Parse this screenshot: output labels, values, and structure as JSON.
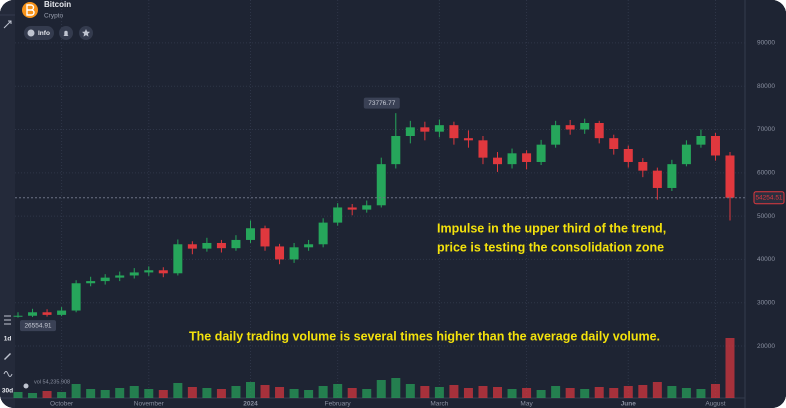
{
  "header": {
    "title": "Bitcoin",
    "subtitle": "Crypto",
    "info_button": "Info"
  },
  "toolbar": {
    "interval": "1d",
    "range": "30d",
    "volume_readout": "vol 54,235.908"
  },
  "annotations": [
    "Impulse in the upper third of the trend,",
    "price is testing the consolidation zone",
    "The daily trading volume is several times higher than the average daily volume."
  ],
  "chart_data": {
    "type": "candlestick",
    "categories": [
      null,
      null,
      null,
      "October",
      null,
      null,
      null,
      null,
      null,
      "November",
      null,
      null,
      null,
      null,
      null,
      null,
      "2024",
      null,
      null,
      null,
      null,
      null,
      "February",
      null,
      null,
      null,
      null,
      null,
      null,
      "March",
      null,
      null,
      null,
      null,
      null,
      "May",
      null,
      null,
      null,
      null,
      null,
      null,
      "June",
      null,
      null,
      null,
      null,
      null,
      "August",
      null
    ],
    "open": [
      26800,
      27000,
      27800,
      27200,
      28200,
      34500,
      35000,
      35800,
      36300,
      37000,
      37500,
      36800,
      43500,
      42500,
      43800,
      42600,
      44500,
      47200,
      43000,
      40000,
      42800,
      43500,
      48500,
      52000,
      51500,
      52500,
      62000,
      68500,
      70500,
      69500,
      71000,
      68000,
      67500,
      63500,
      62000,
      64500,
      62500,
      66500,
      71000,
      70000,
      71500,
      68000,
      65500,
      62500,
      60500,
      56500,
      62000,
      66500,
      68500,
      64000
    ],
    "high": [
      27800,
      28600,
      28500,
      29000,
      35200,
      36000,
      36600,
      37200,
      38000,
      38400,
      38200,
      44600,
      44200,
      45000,
      44500,
      45600,
      49000,
      47800,
      43600,
      43800,
      44500,
      49500,
      53000,
      52800,
      53600,
      63500,
      73776.77,
      72000,
      71800,
      72300,
      71800,
      69800,
      68500,
      64800,
      65600,
      65200,
      67600,
      72000,
      72200,
      72500,
      72000,
      68800,
      66300,
      63400,
      61200,
      63000,
      67500,
      70000,
      69200,
      64800
    ],
    "low": [
      26554.91,
      26700,
      26800,
      26900,
      27800,
      33800,
      34200,
      35000,
      35600,
      36200,
      35900,
      36300,
      41200,
      41800,
      41600,
      42000,
      43800,
      42000,
      38900,
      39200,
      42000,
      42800,
      47800,
      50200,
      50800,
      52000,
      61000,
      66800,
      67500,
      68200,
      66500,
      65800,
      62000,
      60200,
      61000,
      60800,
      61800,
      65800,
      68800,
      69000,
      66800,
      64200,
      61200,
      59000,
      53800,
      55800,
      61500,
      65800,
      62800,
      49000
    ],
    "close": [
      27000,
      27800,
      27200,
      28200,
      34500,
      35000,
      35800,
      36300,
      37000,
      37500,
      36800,
      43500,
      42500,
      43800,
      42600,
      44500,
      47200,
      43000,
      40000,
      42800,
      43500,
      48500,
      52000,
      51500,
      52500,
      62000,
      68500,
      70500,
      69500,
      71000,
      68000,
      67500,
      63500,
      62000,
      64500,
      62500,
      66500,
      71000,
      70000,
      71500,
      68000,
      65500,
      62500,
      60500,
      56500,
      62000,
      66500,
      68500,
      64000,
      54254.51
    ],
    "volume": [
      6,
      5,
      7,
      6,
      14,
      9,
      8,
      10,
      12,
      9,
      8,
      15,
      11,
      10,
      9,
      12,
      16,
      13,
      11,
      9,
      8,
      12,
      14,
      10,
      9,
      18,
      20,
      14,
      12,
      11,
      13,
      10,
      12,
      11,
      9,
      10,
      8,
      12,
      10,
      9,
      11,
      10,
      12,
      13,
      16,
      12,
      10,
      9,
      14,
      60
    ],
    "up_color": "#26a65b",
    "down_color": "#e0383e",
    "ylim": [
      8700,
      99900
    ],
    "yticks": [
      20000,
      30000,
      40000,
      50000,
      60000,
      70000,
      80000,
      90000
    ],
    "grid": true
  }
}
